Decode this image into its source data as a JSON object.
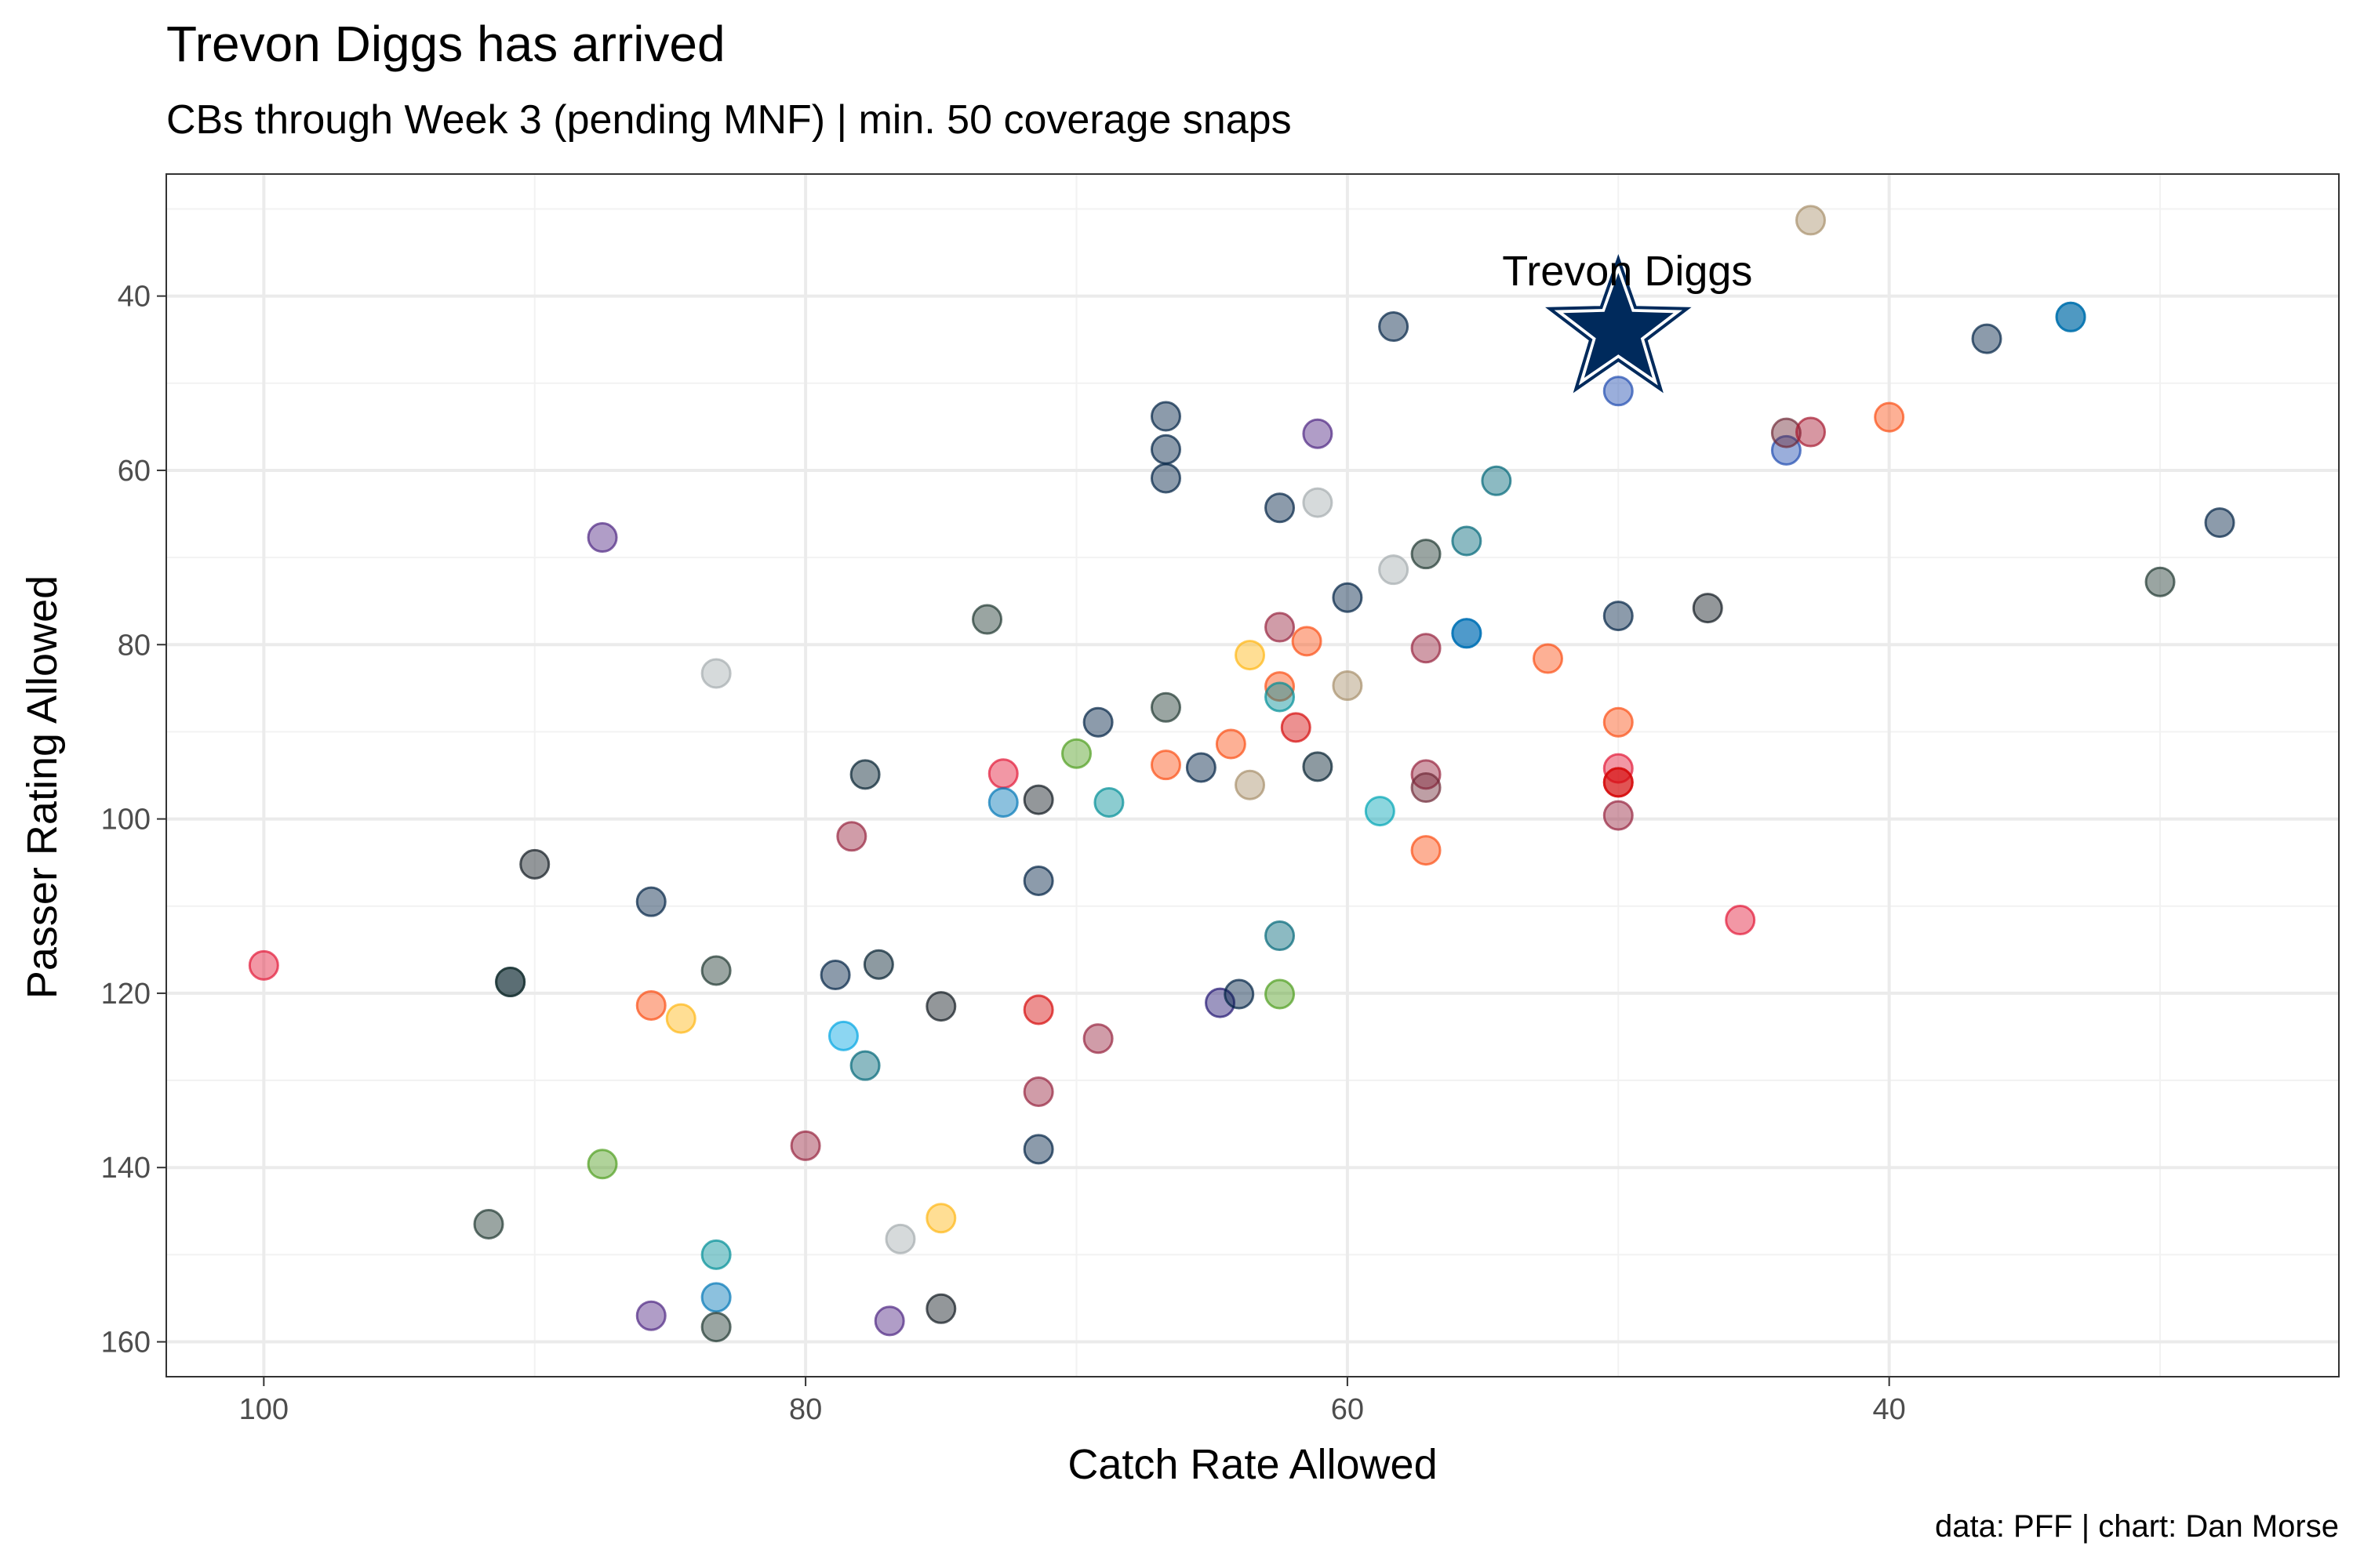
{
  "chart_data": {
    "type": "scatter",
    "title": "Trevon Diggs has arrived",
    "subtitle": "CBs through Week 3 (pending MNF) | min. 50 coverage snaps",
    "xlabel": "Catch Rate Allowed",
    "ylabel": "Passer Rating Allowed",
    "caption": "data: PFF | chart: Dan Morse",
    "x_reversed": true,
    "y_reversed": true,
    "xlim": [
      103.6,
      23.4
    ],
    "ylim": [
      26.0,
      164.0
    ],
    "x_ticks": [
      100,
      80,
      60,
      40
    ],
    "y_ticks": [
      40,
      60,
      80,
      100,
      120,
      140,
      160
    ],
    "grid": true,
    "highlight": {
      "label": "Trevon Diggs",
      "x": 50.0,
      "y": 44.0,
      "color": "#002a5c",
      "marker": "star"
    },
    "points": [
      {
        "x": 100.0,
        "y": 116.8,
        "color": "#e31837"
      },
      {
        "x": 91.7,
        "y": 146.5,
        "color": "#203731"
      },
      {
        "x": 90.9,
        "y": 118.7,
        "color": "#002244"
      },
      {
        "x": 90.9,
        "y": 118.7,
        "color": "#203731"
      },
      {
        "x": 90.0,
        "y": 105.2,
        "color": "#101820"
      },
      {
        "x": 87.5,
        "y": 67.7,
        "color": "#4f2683"
      },
      {
        "x": 87.5,
        "y": 139.6,
        "color": "#4f9e1e"
      },
      {
        "x": 85.7,
        "y": 109.5,
        "color": "#002244"
      },
      {
        "x": 85.7,
        "y": 121.4,
        "color": "#fb4f14"
      },
      {
        "x": 85.7,
        "y": 157.0,
        "color": "#4f2683"
      },
      {
        "x": 84.6,
        "y": 122.9,
        "color": "#ffb612"
      },
      {
        "x": 83.3,
        "y": 83.3,
        "color": "#a5acaf"
      },
      {
        "x": 83.3,
        "y": 117.4,
        "color": "#203731"
      },
      {
        "x": 83.3,
        "y": 150.0,
        "color": "#008e97"
      },
      {
        "x": 83.3,
        "y": 154.9,
        "color": "#0076b6"
      },
      {
        "x": 83.3,
        "y": 158.3,
        "color": "#203731"
      },
      {
        "x": 80.0,
        "y": 137.5,
        "color": "#97233f"
      },
      {
        "x": 78.9,
        "y": 117.9,
        "color": "#002244"
      },
      {
        "x": 78.6,
        "y": 124.9,
        "color": "#00a5e3"
      },
      {
        "x": 78.3,
        "y": 102.0,
        "color": "#97233f"
      },
      {
        "x": 77.8,
        "y": 94.9,
        "color": "#03202f"
      },
      {
        "x": 77.8,
        "y": 128.3,
        "color": "#006778"
      },
      {
        "x": 77.3,
        "y": 116.7,
        "color": "#03202f"
      },
      {
        "x": 76.9,
        "y": 157.6,
        "color": "#4f2683"
      },
      {
        "x": 76.5,
        "y": 148.2,
        "color": "#a5acaf"
      },
      {
        "x": 75.0,
        "y": 121.5,
        "color": "#101820"
      },
      {
        "x": 75.0,
        "y": 145.8,
        "color": "#ffb612"
      },
      {
        "x": 75.0,
        "y": 156.2,
        "color": "#101820"
      },
      {
        "x": 73.3,
        "y": 77.1,
        "color": "#203731"
      },
      {
        "x": 72.7,
        "y": 94.8,
        "color": "#e31837"
      },
      {
        "x": 72.7,
        "y": 98.1,
        "color": "#0076b6"
      },
      {
        "x": 71.4,
        "y": 97.8,
        "color": "#101820"
      },
      {
        "x": 71.4,
        "y": 107.1,
        "color": "#002244"
      },
      {
        "x": 71.4,
        "y": 121.9,
        "color": "#d50a0a"
      },
      {
        "x": 71.4,
        "y": 131.3,
        "color": "#97233f"
      },
      {
        "x": 71.4,
        "y": 137.9,
        "color": "#002244"
      },
      {
        "x": 70.0,
        "y": 92.5,
        "color": "#4f9e1e"
      },
      {
        "x": 69.2,
        "y": 88.9,
        "color": "#002244"
      },
      {
        "x": 69.2,
        "y": 125.2,
        "color": "#97233f"
      },
      {
        "x": 68.8,
        "y": 98.1,
        "color": "#008e97"
      },
      {
        "x": 66.7,
        "y": 53.8,
        "color": "#002244"
      },
      {
        "x": 66.7,
        "y": 57.6,
        "color": "#002244"
      },
      {
        "x": 66.7,
        "y": 60.9,
        "color": "#002244"
      },
      {
        "x": 66.7,
        "y": 87.2,
        "color": "#203731"
      },
      {
        "x": 66.7,
        "y": 93.8,
        "color": "#fb4f14"
      },
      {
        "x": 65.4,
        "y": 94.1,
        "color": "#002244"
      },
      {
        "x": 64.7,
        "y": 121.1,
        "color": "#241773"
      },
      {
        "x": 64.3,
        "y": 91.4,
        "color": "#fb4f14"
      },
      {
        "x": 64.0,
        "y": 120.1,
        "color": "#002244"
      },
      {
        "x": 63.6,
        "y": 81.2,
        "color": "#ffb612"
      },
      {
        "x": 63.6,
        "y": 96.1,
        "color": "#a8906b"
      },
      {
        "x": 62.5,
        "y": 64.3,
        "color": "#002244"
      },
      {
        "x": 62.5,
        "y": 78.0,
        "color": "#97233f"
      },
      {
        "x": 62.5,
        "y": 84.8,
        "color": "#fb4f14"
      },
      {
        "x": 62.5,
        "y": 86.0,
        "color": "#008e97"
      },
      {
        "x": 62.5,
        "y": 113.4,
        "color": "#006778"
      },
      {
        "x": 62.5,
        "y": 120.1,
        "color": "#4f9e1e"
      },
      {
        "x": 61.9,
        "y": 89.5,
        "color": "#d50a0a"
      },
      {
        "x": 61.5,
        "y": 79.6,
        "color": "#fb4f14"
      },
      {
        "x": 61.1,
        "y": 55.8,
        "color": "#4f2683"
      },
      {
        "x": 61.1,
        "y": 63.7,
        "color": "#a5acaf"
      },
      {
        "x": 61.1,
        "y": 94.0,
        "color": "#03202f"
      },
      {
        "x": 60.0,
        "y": 74.6,
        "color": "#002244"
      },
      {
        "x": 60.0,
        "y": 84.7,
        "color": "#a8906b"
      },
      {
        "x": 58.8,
        "y": 99.1,
        "color": "#00a5b5"
      },
      {
        "x": 58.3,
        "y": 43.5,
        "color": "#002244"
      },
      {
        "x": 58.3,
        "y": 71.4,
        "color": "#a5acaf"
      },
      {
        "x": 57.1,
        "y": 69.6,
        "color": "#203731"
      },
      {
        "x": 57.1,
        "y": 80.4,
        "color": "#97233f"
      },
      {
        "x": 57.1,
        "y": 94.9,
        "color": "#97233f"
      },
      {
        "x": 57.1,
        "y": 96.4,
        "color": "#6f2a37"
      },
      {
        "x": 57.1,
        "y": 103.6,
        "color": "#fb4f14"
      },
      {
        "x": 55.6,
        "y": 68.1,
        "color": "#006778"
      },
      {
        "x": 55.6,
        "y": 78.7,
        "color": "#0c63b2"
      },
      {
        "x": 55.6,
        "y": 78.7,
        "color": "#0076b6"
      },
      {
        "x": 54.5,
        "y": 61.2,
        "color": "#006778"
      },
      {
        "x": 52.6,
        "y": 81.6,
        "color": "#fb4f14"
      },
      {
        "x": 50.0,
        "y": 50.9,
        "color": "#1f4bb0"
      },
      {
        "x": 50.0,
        "y": 76.7,
        "color": "#002244"
      },
      {
        "x": 50.0,
        "y": 88.9,
        "color": "#fb4f14"
      },
      {
        "x": 50.0,
        "y": 94.2,
        "color": "#e31837"
      },
      {
        "x": 50.0,
        "y": 95.8,
        "color": "#d50a0a"
      },
      {
        "x": 50.0,
        "y": 95.8,
        "color": "#d50a0a"
      },
      {
        "x": 50.0,
        "y": 99.6,
        "color": "#97233f"
      },
      {
        "x": 46.7,
        "y": 75.8,
        "color": "#101820"
      },
      {
        "x": 45.5,
        "y": 111.6,
        "color": "#e31837"
      },
      {
        "x": 43.8,
        "y": 57.7,
        "color": "#1f4bb0"
      },
      {
        "x": 43.8,
        "y": 55.7,
        "color": "#6f2a37"
      },
      {
        "x": 42.9,
        "y": 55.6,
        "color": "#a71930"
      },
      {
        "x": 42.9,
        "y": 31.3,
        "color": "#a8906b"
      },
      {
        "x": 40.0,
        "y": 53.9,
        "color": "#fb4f14"
      },
      {
        "x": 36.4,
        "y": 44.9,
        "color": "#002244"
      },
      {
        "x": 33.3,
        "y": 42.4,
        "color": "#0b5f8f"
      },
      {
        "x": 33.3,
        "y": 42.4,
        "color": "#0076b6"
      },
      {
        "x": 30.0,
        "y": 72.8,
        "color": "#203731"
      },
      {
        "x": 27.8,
        "y": 66.0,
        "color": "#002244"
      }
    ]
  }
}
